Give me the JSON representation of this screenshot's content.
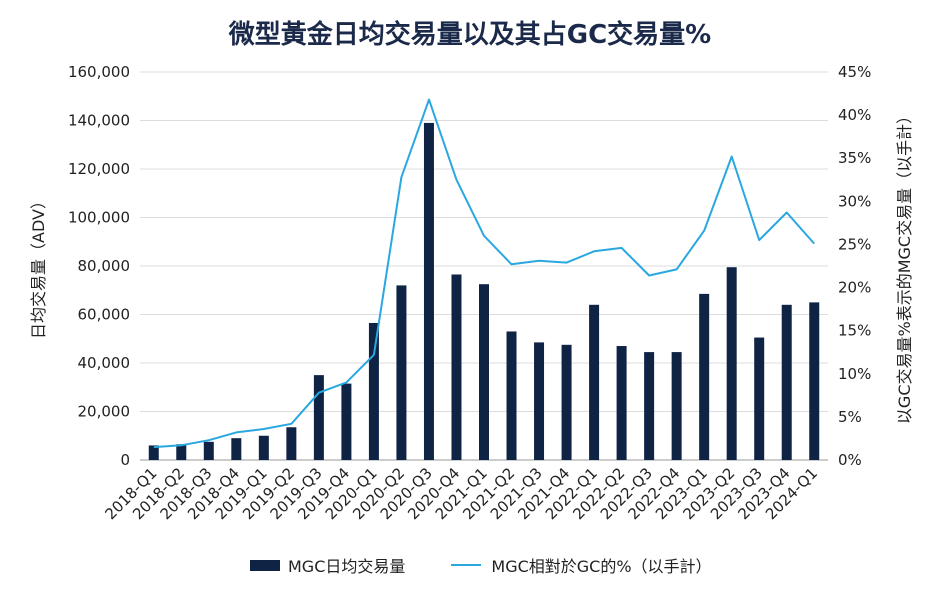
{
  "chart_data": {
    "type": "bar+line",
    "title": "微型黃金日均交易量以及其占GC交易量%",
    "categories": [
      "2018-Q1",
      "2018-Q2",
      "2018-Q3",
      "2018-Q4",
      "2019-Q1",
      "2019-Q2",
      "2019-Q3",
      "2019-Q4",
      "2020-Q1",
      "2020-Q2",
      "2020-Q3",
      "2020-Q4",
      "2021-Q1",
      "2021-Q2",
      "2021-Q3",
      "2021-Q4",
      "2022-Q1",
      "2022-Q2",
      "2022-Q3",
      "2022-Q4",
      "2023-Q1",
      "2023-Q2",
      "2023-Q3",
      "2023-Q4",
      "2024-Q1"
    ],
    "series": [
      {
        "name": "MGC日均交易量",
        "axis": "left",
        "kind": "bar",
        "color": "#0f2444",
        "values": [
          6000,
          6500,
          7500,
          9000,
          10000,
          13500,
          35000,
          31500,
          56500,
          72000,
          139000,
          76500,
          72500,
          53000,
          48500,
          47500,
          64000,
          47000,
          44500,
          44500,
          68500,
          79500,
          50500,
          64000,
          65000
        ]
      },
      {
        "name": "MGC相對於GC的%（以手計）",
        "axis": "right",
        "kind": "line",
        "color": "#29a8e0",
        "values": [
          1.5,
          1.7,
          2.3,
          3.2,
          3.6,
          4.2,
          7.8,
          9.0,
          12.2,
          32.8,
          41.8,
          32.5,
          26.0,
          22.7,
          23.1,
          22.9,
          24.2,
          24.6,
          21.4,
          22.1,
          26.6,
          35.2,
          25.5,
          28.7,
          25.1
        ]
      }
    ],
    "ylabel_left": "日均交易量（ADV）",
    "ylabel_right": "以GC交易量%表示的MGC交易量（以手計）",
    "ylim_left": [
      0,
      160000
    ],
    "ylim_right": [
      0,
      45
    ],
    "yticks_left": [
      "0",
      "20,000",
      "40,000",
      "60,000",
      "80,000",
      "100,000",
      "120,000",
      "140,000",
      "160,000"
    ],
    "yticks_right": [
      "0%",
      "5%",
      "10%",
      "15%",
      "20%",
      "25%",
      "30%",
      "35%",
      "40%",
      "45%"
    ],
    "grid": true,
    "legend_position": "bottom"
  }
}
